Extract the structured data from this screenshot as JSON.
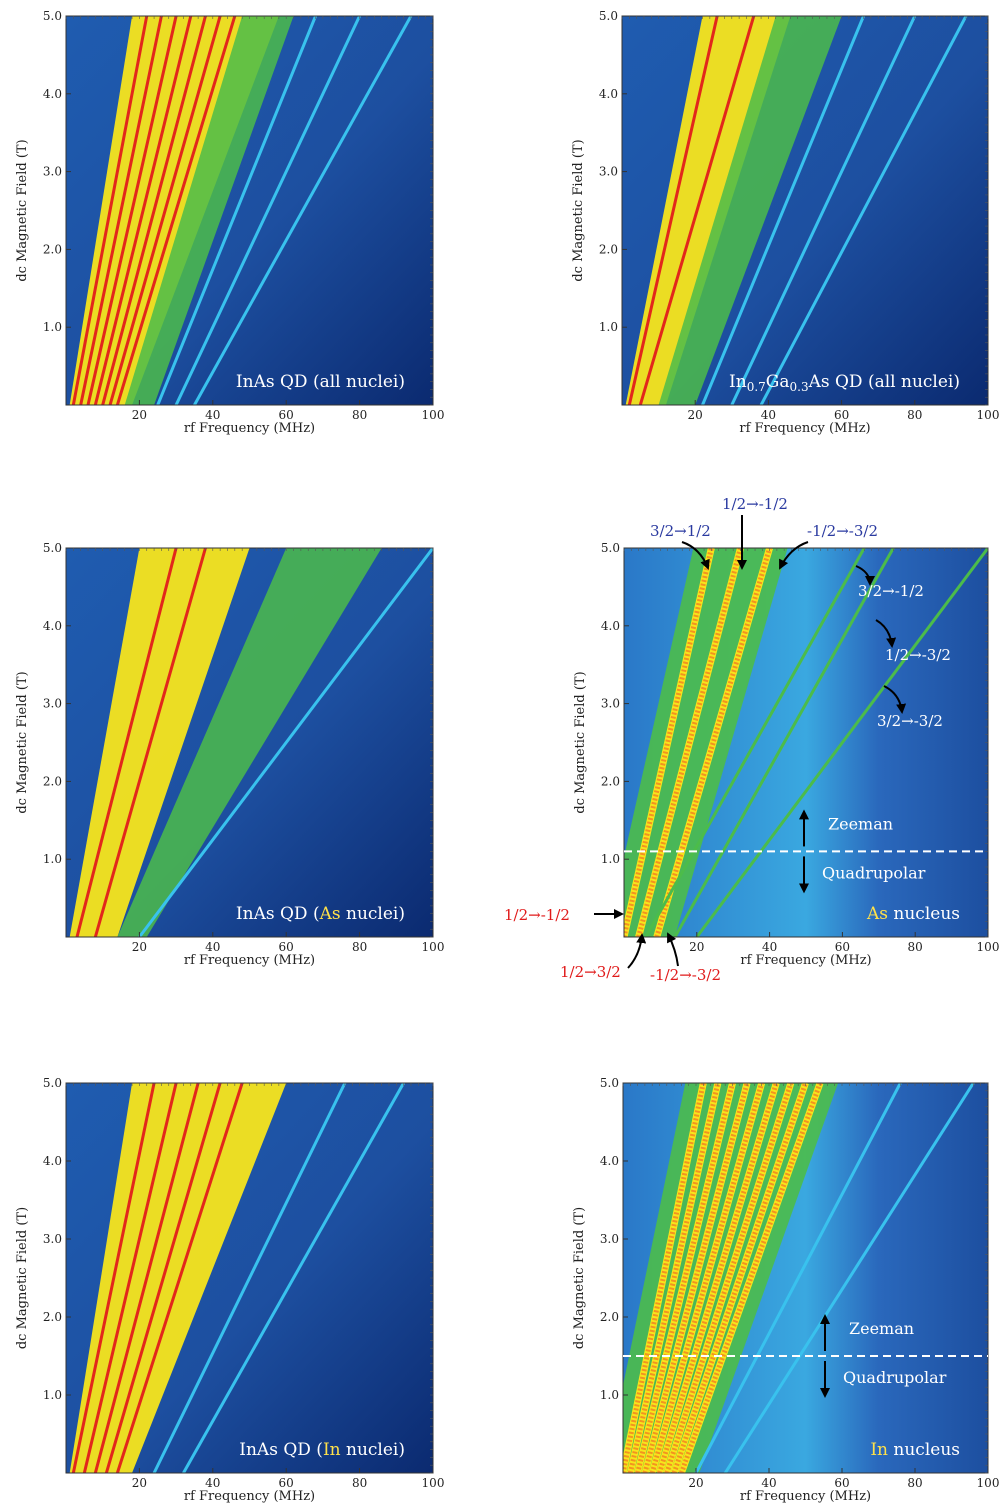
{
  "colors": {
    "blue_bg": "#1d4fa0",
    "deep_blue": "#0b2a70",
    "cyan": "#39c2ee",
    "green": "#4cbc4a",
    "yellow": "#f7e51c",
    "orange": "#f39320",
    "red": "#e2271b",
    "highlight_yellow": "#ffe14a",
    "blue_label": "#2a3aa0",
    "red_label": "#e01a1a"
  },
  "common": {
    "xlabel": "rf Frequency (MHz)",
    "ylabel": "dc Magnetic Field (T)",
    "xticks": [
      20,
      40,
      60,
      80,
      100
    ],
    "yticks": [
      "1.0",
      "2.0",
      "3.0",
      "4.0",
      "5.0"
    ]
  },
  "panels": [
    {
      "pre": "InAs QD (all nuclei)",
      "hl": "",
      "post": "",
      "sub1": "",
      "sub2": "",
      "mid": ""
    },
    {
      "pre": "In",
      "sub1": "0.7",
      "mid": "Ga",
      "sub2": "0.3",
      "post": "As QD (all nuclei)",
      "hl": ""
    },
    {
      "pre": "InAs QD (",
      "hl": "As",
      "post": " nuclei)",
      "sub1": "",
      "sub2": "",
      "mid": ""
    },
    {
      "pre": "",
      "hl": "As",
      "post": " nucleus",
      "sub1": "",
      "sub2": "",
      "mid": ""
    },
    {
      "pre": "InAs QD (",
      "hl": "In",
      "post": " nuclei)",
      "sub1": "",
      "sub2": "",
      "mid": ""
    },
    {
      "pre": "",
      "hl": "In",
      "post": " nucleus",
      "sub1": "",
      "sub2": "",
      "mid": ""
    }
  ],
  "annotations": {
    "as_blue": [
      "1/2→-1/2",
      "3/2→1/2",
      "-1/2→-3/2"
    ],
    "as_white": [
      "3/2→-1/2",
      "1/2→-3/2",
      "3/2→-3/2"
    ],
    "as_red": [
      "1/2→-1/2",
      "1/2→3/2",
      "-1/2→-3/2"
    ],
    "zeeman": "Zeeman",
    "quadrupolar": "Quadrupolar"
  },
  "chart_data": [
    {
      "type": "heatmap",
      "title": "InAs QD (all nuclei)",
      "xlabel": "rf Frequency (MHz)",
      "ylabel": "dc Magnetic Field (T)",
      "xlim": [
        0,
        100
      ],
      "ylim": [
        0,
        5
      ],
      "series": [
        {
          "color": "yellow",
          "x_at_0T": [
            1,
            18
          ],
          "x_at_5T": [
            18,
            58
          ]
        },
        {
          "color": "red",
          "x_at_0T": [
            2,
            4,
            6,
            8,
            10,
            12,
            14
          ],
          "x_at_5T": [
            22,
            26,
            30,
            34,
            38,
            42,
            46
          ]
        },
        {
          "color": "green",
          "x_at_0T": [
            16,
            24
          ],
          "x_at_5T": [
            48,
            62
          ]
        },
        {
          "color": "cyan",
          "x_at_0T": [
            25,
            30,
            35
          ],
          "x_at_5T": [
            68,
            80,
            94
          ]
        }
      ]
    },
    {
      "type": "heatmap",
      "title": "In0.7Ga0.3As QD (all nuclei)",
      "xlabel": "rf Frequency (MHz)",
      "ylabel": "dc Magnetic Field (T)",
      "xlim": [
        0,
        100
      ],
      "ylim": [
        0,
        5
      ],
      "series": [
        {
          "color": "yellow",
          "x_at_0T": [
            1,
            12
          ],
          "x_at_5T": [
            22,
            46
          ]
        },
        {
          "color": "red",
          "x_at_0T": [
            2,
            5
          ],
          "x_at_5T": [
            26,
            36
          ]
        },
        {
          "color": "green",
          "x_at_0T": [
            10,
            20
          ],
          "x_at_5T": [
            42,
            60
          ]
        },
        {
          "color": "cyan",
          "x_at_0T": [
            22,
            30,
            38
          ],
          "x_at_5T": [
            66,
            80,
            94
          ]
        }
      ]
    },
    {
      "type": "heatmap",
      "title": "InAs QD (As nuclei)",
      "xlabel": "rf Frequency (MHz)",
      "ylabel": "dc Magnetic Field (T)",
      "xlim": [
        0,
        100
      ],
      "ylim": [
        0,
        5
      ],
      "series": [
        {
          "color": "yellow",
          "x_at_0T": [
            1,
            14
          ],
          "x_at_5T": [
            20,
            50
          ]
        },
        {
          "color": "red",
          "x_at_0T": [
            3,
            8
          ],
          "x_at_5T": [
            30,
            38
          ]
        },
        {
          "color": "green",
          "x_at_0T": [
            14,
            22
          ],
          "x_at_5T": [
            60,
            86
          ]
        },
        {
          "color": "cyan",
          "x_at_0T": [
            20
          ],
          "x_at_5T": [
            100
          ]
        }
      ]
    },
    {
      "type": "heatmap",
      "title": "As nucleus",
      "xlabel": "rf Frequency (MHz)",
      "ylabel": "dc Magnetic Field (T)",
      "xlim": [
        0,
        100
      ],
      "ylim": [
        0,
        5
      ],
      "series": [
        {
          "color": "yellow-dotted",
          "x_at_0T": [
            0,
            4,
            9
          ],
          "x_at_5T": [
            24,
            32,
            40
          ]
        },
        {
          "color": "green",
          "x_at_0T": [
            6,
            14,
            20
          ],
          "x_at_5T": [
            66,
            74,
            100
          ]
        }
      ],
      "boundary_field_T": 1.1
    },
    {
      "type": "heatmap",
      "title": "InAs QD (In nuclei)",
      "xlabel": "rf Frequency (MHz)",
      "ylabel": "dc Magnetic Field (T)",
      "xlim": [
        0,
        100
      ],
      "ylim": [
        0,
        5
      ],
      "series": [
        {
          "color": "yellow",
          "x_at_0T": [
            1,
            18
          ],
          "x_at_5T": [
            18,
            60
          ]
        },
        {
          "color": "red",
          "x_at_0T": [
            2,
            5,
            8,
            11,
            14
          ],
          "x_at_5T": [
            24,
            30,
            36,
            42,
            48
          ]
        },
        {
          "color": "cyan",
          "x_at_0T": [
            24,
            32
          ],
          "x_at_5T": [
            76,
            92
          ]
        }
      ]
    },
    {
      "type": "heatmap",
      "title": "In nucleus",
      "xlabel": "rf Frequency (MHz)",
      "ylabel": "dc Magnetic Field (T)",
      "xlim": [
        0,
        100
      ],
      "ylim": [
        0,
        5
      ],
      "series": [
        {
          "color": "yellow-dotted",
          "x_at_0T": [
            0,
            2,
            4,
            6,
            8,
            10,
            12,
            14,
            16
          ],
          "x_at_5T": [
            22,
            26,
            30,
            34,
            38,
            42,
            46,
            50,
            54
          ]
        },
        {
          "color": "cyan",
          "x_at_0T": [
            20,
            28
          ],
          "x_at_5T": [
            76,
            96
          ]
        }
      ],
      "boundary_field_T": 1.5
    }
  ]
}
